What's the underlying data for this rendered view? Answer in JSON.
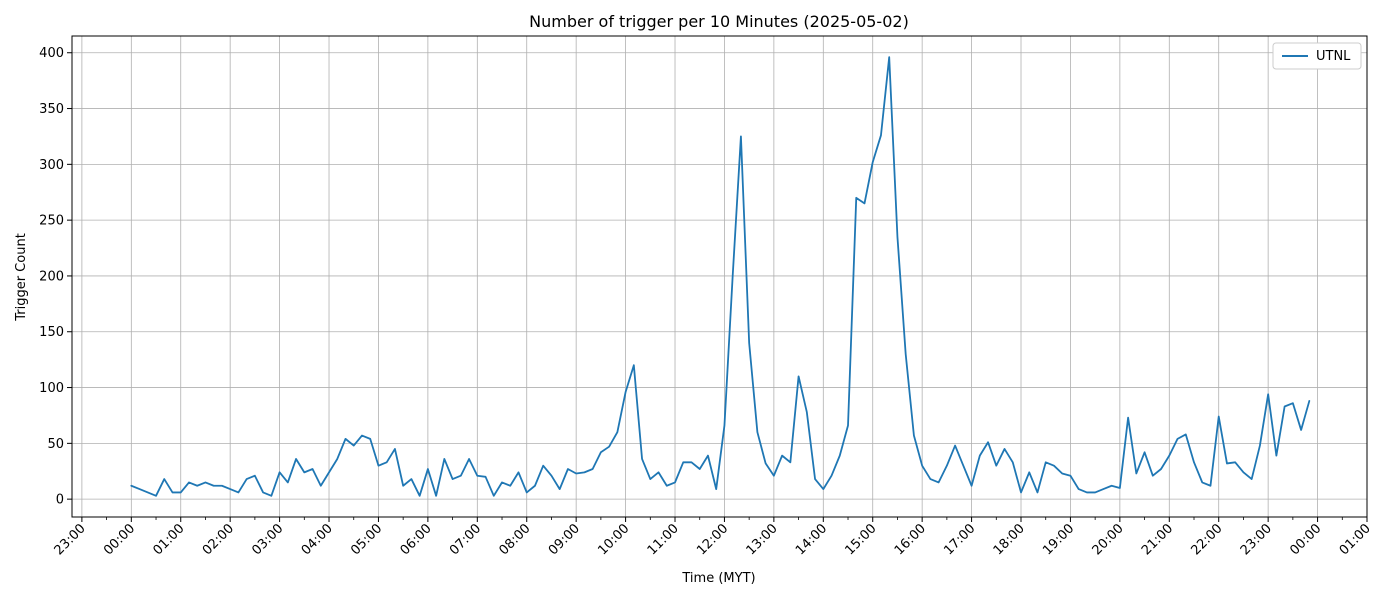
{
  "chart_data": {
    "type": "line",
    "title": "Number of trigger per 10 Minutes (2025-05-02)",
    "xlabel": "Time (MYT)",
    "ylabel": "Trigger Count",
    "x_tick_labels": [
      "23:00",
      "00:00",
      "01:00",
      "02:00",
      "03:00",
      "04:00",
      "05:00",
      "06:00",
      "07:00",
      "08:00",
      "09:00",
      "10:00",
      "11:00",
      "12:00",
      "13:00",
      "14:00",
      "15:00",
      "16:00",
      "17:00",
      "18:00",
      "19:00",
      "20:00",
      "21:00",
      "22:00",
      "23:00",
      "00:00",
      "01:00"
    ],
    "y_ticks": [
      0,
      50,
      100,
      150,
      200,
      250,
      300,
      350,
      400
    ],
    "ylim": [
      -16,
      415
    ],
    "xlim_hours": [
      -1.2,
      25.0
    ],
    "x_unit": "hours since 00:00 (MYT), 10-minute intervals",
    "grid": true,
    "legend_position": "top-right",
    "series": [
      {
        "name": "UTNL",
        "color": "#1f77b4",
        "x_start_hour": 0,
        "x_step_minutes": 10,
        "values": [
          12,
          9,
          6,
          3,
          18,
          6,
          6,
          15,
          12,
          15,
          12,
          12,
          9,
          6,
          18,
          21,
          6,
          3,
          24,
          15,
          36,
          24,
          27,
          12,
          24,
          36,
          54,
          48,
          57,
          54,
          30,
          33,
          45,
          12,
          18,
          3,
          27,
          3,
          36,
          18,
          21,
          36,
          21,
          20,
          3,
          15,
          12,
          24,
          6,
          12,
          30,
          21,
          9,
          27,
          23,
          24,
          27,
          42,
          47,
          60,
          96,
          120,
          36,
          18,
          24,
          12,
          15,
          33,
          33,
          27,
          39,
          9,
          66,
          200,
          325,
          140,
          60,
          32,
          21,
          39,
          33,
          110,
          78,
          18,
          9,
          21,
          39,
          66,
          270,
          265,
          302,
          326,
          396,
          235,
          130,
          57,
          30,
          18,
          15,
          30,
          48,
          30,
          12,
          39,
          51,
          30,
          45,
          33,
          6,
          24,
          6,
          33,
          30,
          23,
          21,
          9,
          6,
          6,
          9,
          12,
          10,
          73,
          23,
          42,
          21,
          27,
          39,
          54,
          58,
          33,
          15,
          12,
          74,
          32,
          33,
          24,
          18,
          48,
          94,
          39,
          83,
          86,
          62,
          88
        ]
      }
    ]
  }
}
